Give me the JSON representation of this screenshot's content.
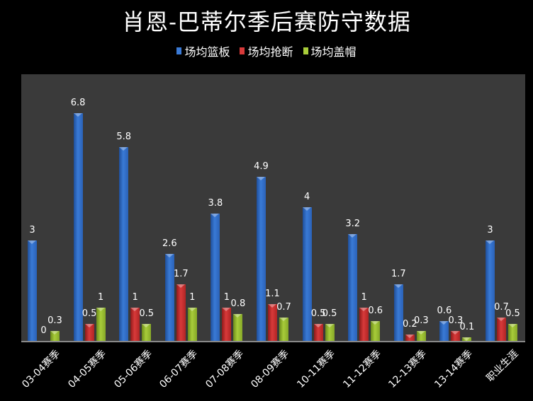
{
  "chart_data": {
    "type": "bar",
    "title": "肖恩-巴蒂尔季后赛防守数据",
    "xlabel": "",
    "ylabel": "",
    "legend_position": "top",
    "grid": false,
    "categories": [
      "03-04赛季",
      "04-05赛季",
      "05-06赛季",
      "06-07赛季",
      "07-08赛季",
      "08-09赛季",
      "10-11赛季",
      "11-12赛季",
      "12-13赛季",
      "13-14赛季",
      "职业生涯"
    ],
    "series": [
      {
        "name": "场均篮板",
        "color": "#3a7ad6",
        "values": [
          3,
          6.8,
          5.8,
          2.6,
          3.8,
          4.9,
          4,
          3.2,
          1.7,
          0.6,
          3
        ]
      },
      {
        "name": "场均抢断",
        "color": "#d83a3a",
        "values": [
          0,
          0.5,
          1,
          1.7,
          1,
          1.1,
          0.5,
          1,
          0.2,
          0.3,
          0.7
        ]
      },
      {
        "name": "场均盖帽",
        "color": "#a8cc3a",
        "values": [
          0.3,
          1,
          0.5,
          1,
          0.8,
          0.7,
          0.5,
          0.6,
          0.3,
          0.1,
          0.5
        ]
      }
    ],
    "ylim": [
      0,
      8
    ]
  },
  "legend": [
    {
      "label": "场均篮板",
      "color": "#3a7ad6"
    },
    {
      "label": "场均抢断",
      "color": "#d83a3a"
    },
    {
      "label": "场均盖帽",
      "color": "#a8cc3a"
    }
  ]
}
